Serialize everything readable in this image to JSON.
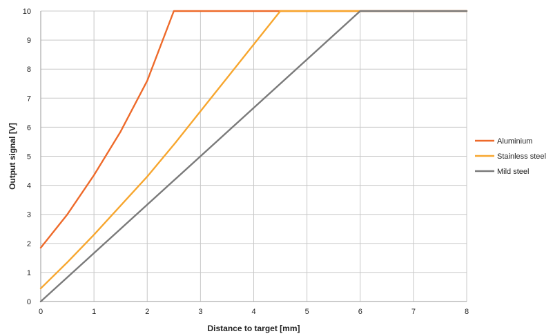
{
  "chart_data": {
    "type": "line",
    "title": "",
    "xlabel": "Distance to target [mm]",
    "ylabel": "Output signal [V]",
    "xlim": [
      0,
      8
    ],
    "ylim": [
      0,
      10
    ],
    "x_ticks": [
      "0",
      "1",
      "2",
      "3",
      "4",
      "5",
      "6",
      "7",
      "8"
    ],
    "y_ticks": [
      "0",
      "1",
      "2",
      "3",
      "4",
      "5",
      "6",
      "7",
      "8",
      "9",
      "10"
    ],
    "grid": true,
    "legend_position": "right",
    "series": [
      {
        "name": "Aluminium",
        "color": "#EE6A2A",
        "points": [
          [
            0,
            1.85
          ],
          [
            0.5,
            3.0
          ],
          [
            1.0,
            4.35
          ],
          [
            1.5,
            5.85
          ],
          [
            2.0,
            7.6
          ],
          [
            2.5,
            10.0
          ],
          [
            8.0,
            10.0
          ]
        ]
      },
      {
        "name": "Stainless steel",
        "color": "#F7A62E",
        "points": [
          [
            0,
            0.45
          ],
          [
            0.5,
            1.35
          ],
          [
            1.0,
            2.3
          ],
          [
            1.5,
            3.3
          ],
          [
            2.0,
            4.3
          ],
          [
            2.5,
            5.4
          ],
          [
            3.0,
            6.55
          ],
          [
            3.5,
            7.7
          ],
          [
            4.0,
            8.85
          ],
          [
            4.5,
            10.0
          ],
          [
            8.0,
            10.0
          ]
        ]
      },
      {
        "name": "Mild steel",
        "color": "#7A7A7A",
        "points": [
          [
            0,
            0.0
          ],
          [
            6.0,
            10.0
          ],
          [
            8.0,
            10.0
          ]
        ]
      }
    ]
  }
}
